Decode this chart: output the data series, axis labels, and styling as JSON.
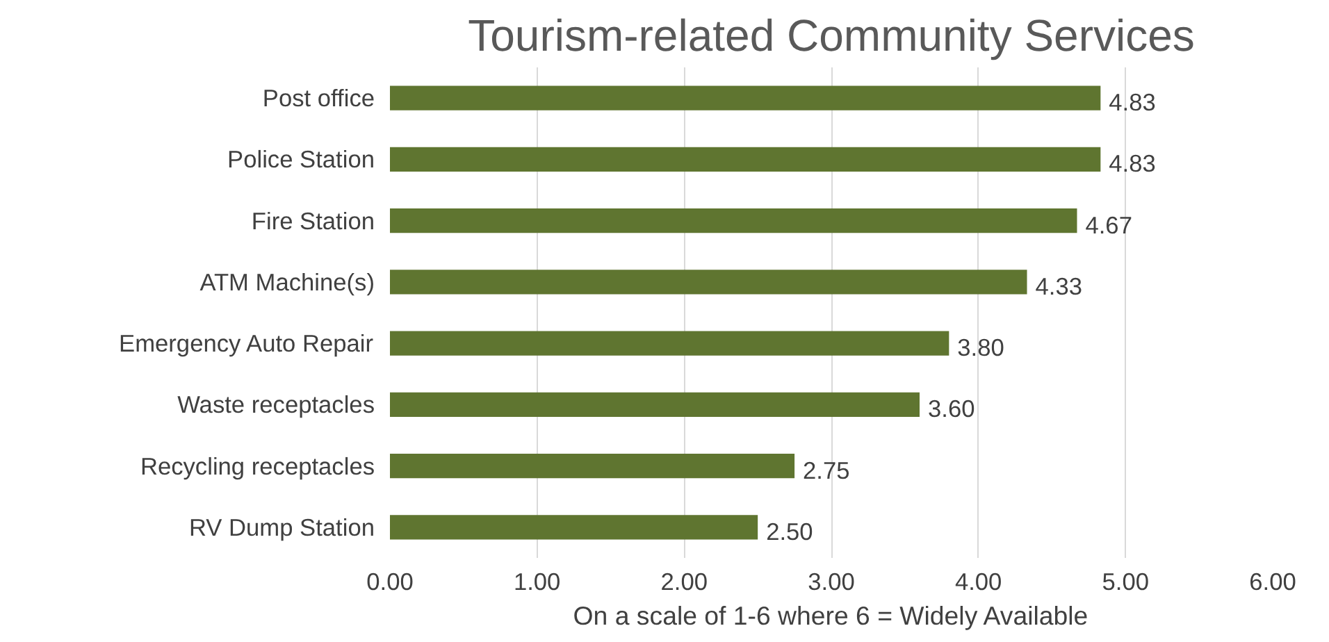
{
  "chart_data": {
    "type": "bar",
    "orientation": "horizontal",
    "title": "Tourism-related Community Services",
    "xlabel": "On a scale of 1-6 where 6 = Widely Available",
    "categories": [
      "Post office",
      "Police Station",
      "Fire Station",
      "ATM Machine(s)",
      "Emergency Auto Repair",
      "Waste receptacles",
      "Recycling receptacles",
      "RV Dump Station"
    ],
    "values": [
      4.83,
      4.83,
      4.67,
      4.33,
      3.8,
      3.6,
      2.75,
      2.5
    ],
    "value_labels": [
      "4.83",
      "4.83",
      "4.67",
      "4.33",
      "3.80",
      "3.60",
      "2.75",
      "2.50"
    ],
    "color": "#5f7530",
    "xlim": [
      0,
      6
    ],
    "xticks": [
      {
        "value": 0,
        "label": "0.00"
      },
      {
        "value": 1,
        "label": "1.00"
      },
      {
        "value": 2,
        "label": "2.00"
      },
      {
        "value": 3,
        "label": "3.00"
      },
      {
        "value": 4,
        "label": "4.00"
      },
      {
        "value": 5,
        "label": "5.00"
      },
      {
        "value": 6,
        "label": "6.00"
      }
    ],
    "grid": "x"
  }
}
